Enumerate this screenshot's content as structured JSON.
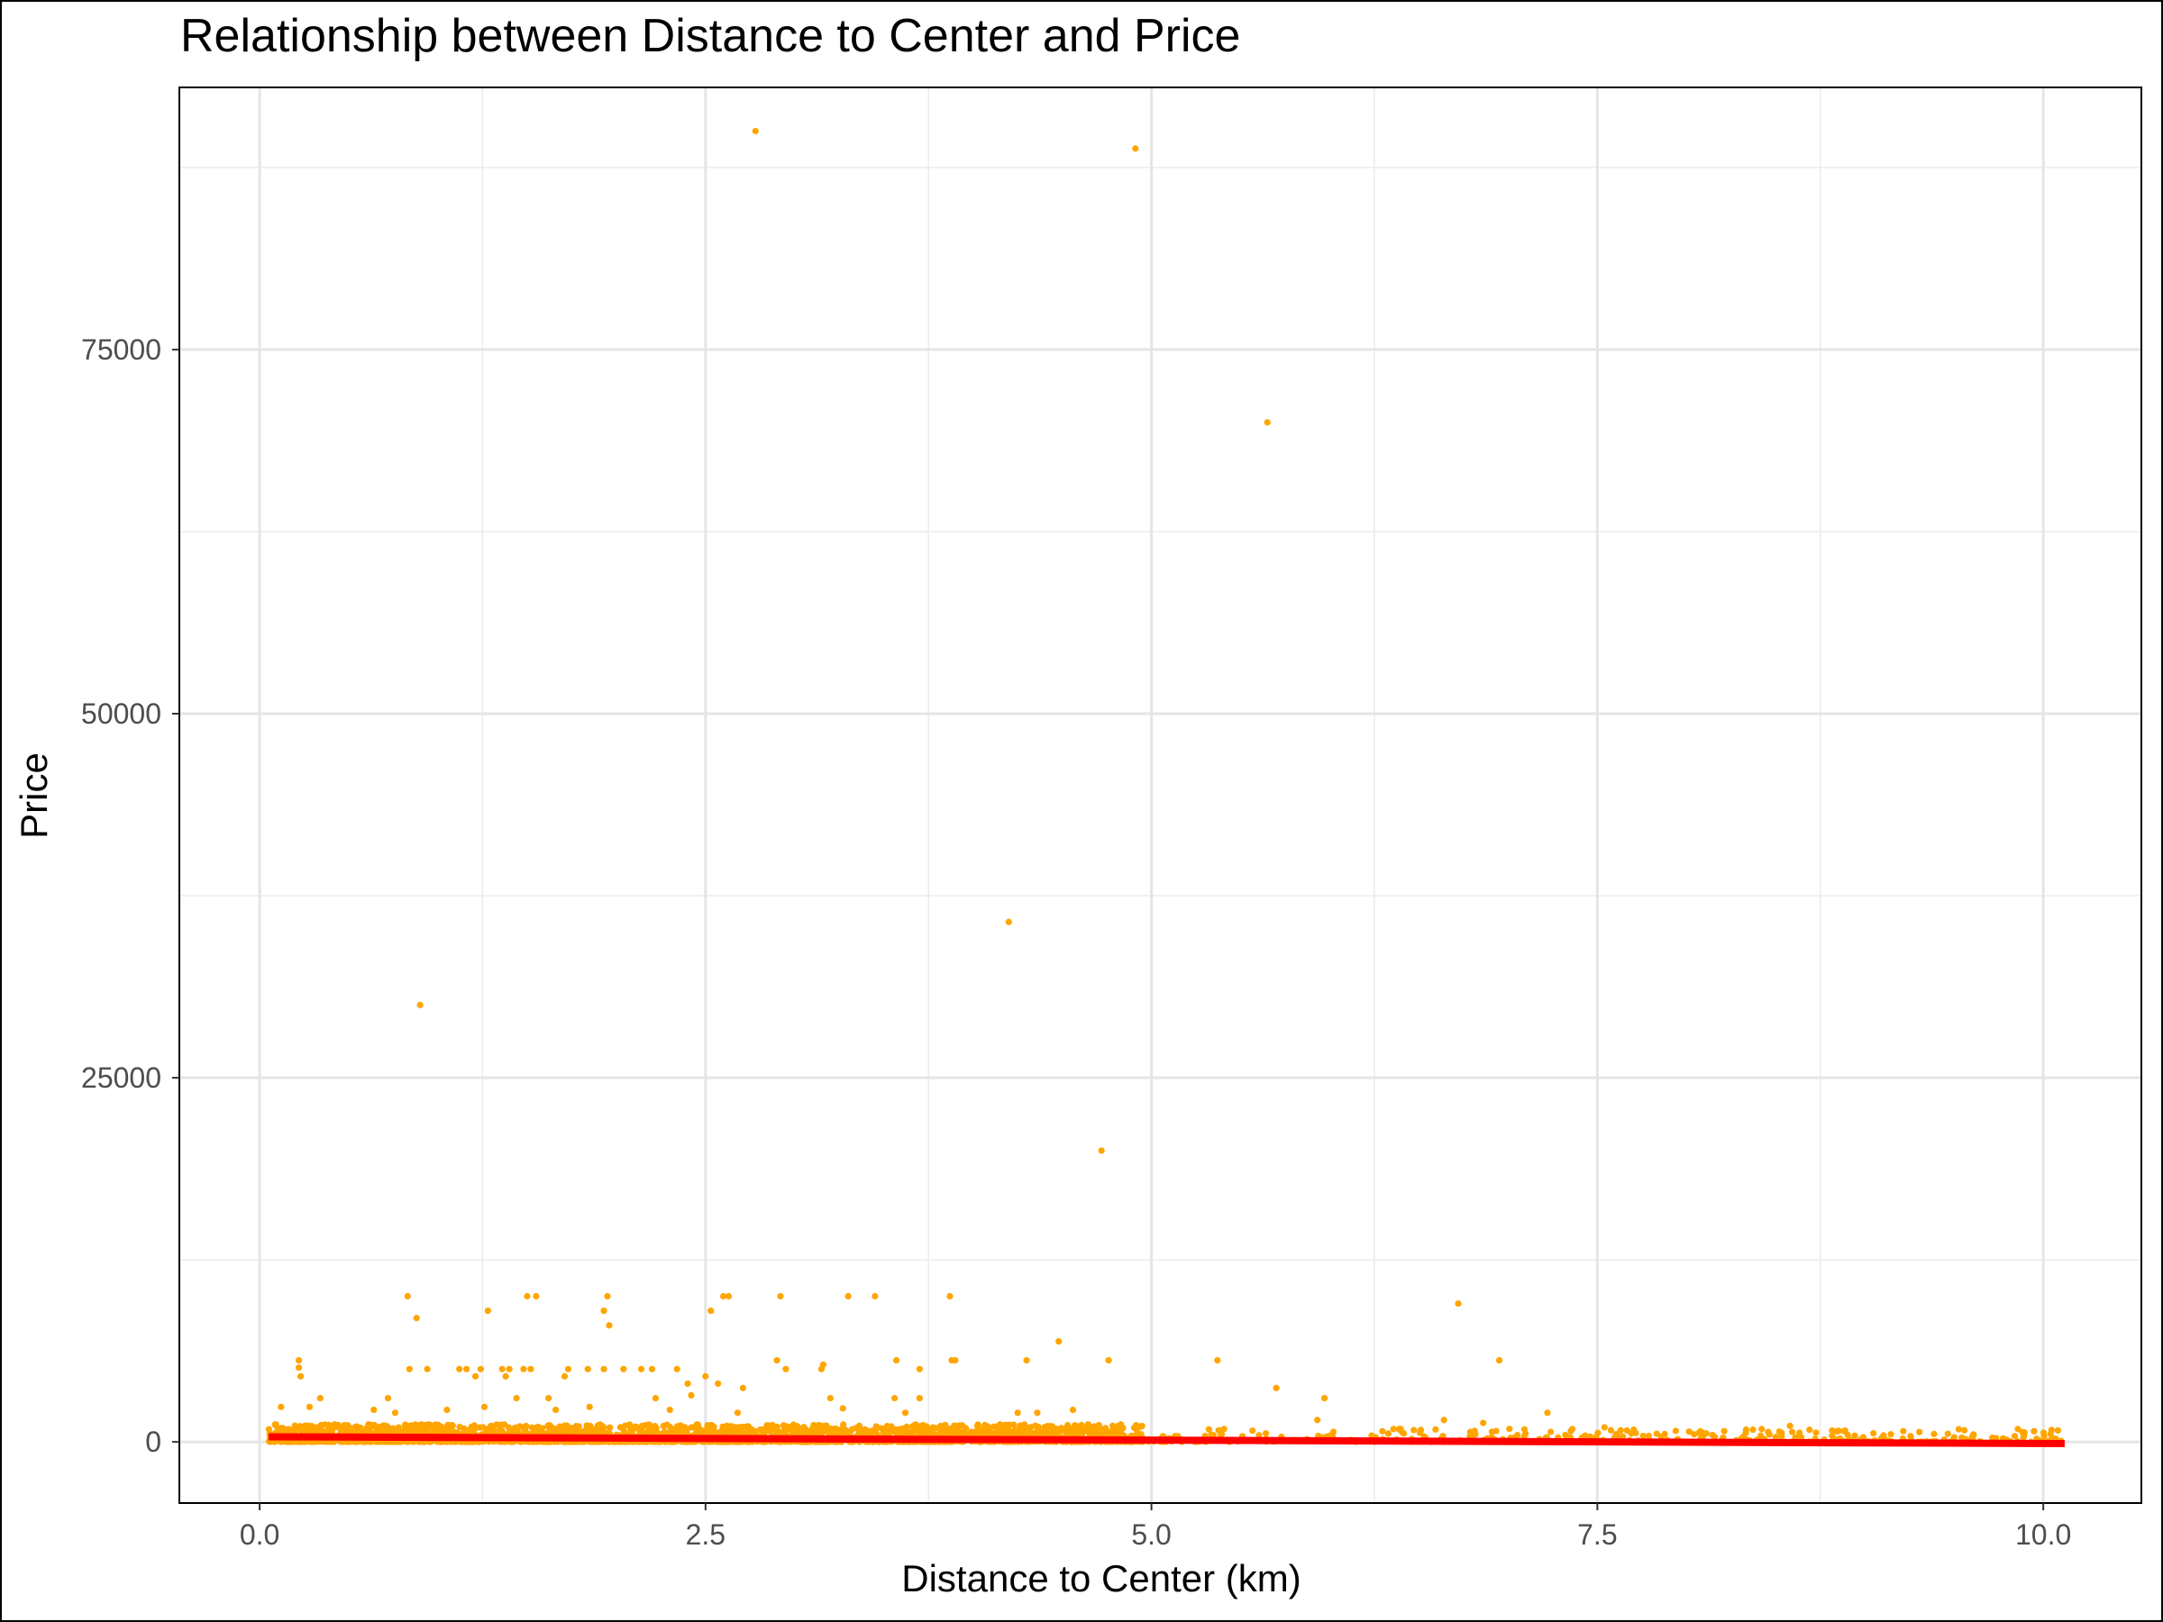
{
  "chart_data": {
    "type": "scatter",
    "title": "Relationship between Distance to Center and Price",
    "xlabel": "Distance to Center (km)",
    "ylabel": "Price",
    "xlim": [
      -0.45,
      10.55
    ],
    "ylim": [
      -4200,
      93000
    ],
    "x_ticks": [
      0.0,
      2.5,
      5.0,
      7.5,
      10.0
    ],
    "x_tick_labels": [
      "0.0",
      "2.5",
      "5.0",
      "7.5",
      "10.0"
    ],
    "y_ticks": [
      0,
      25000,
      50000,
      75000
    ],
    "y_tick_labels": [
      "0",
      "25000",
      "50000",
      "75000"
    ],
    "grid": true,
    "point_color": "#FFA500",
    "line_color": "#FF0000",
    "series": [
      {
        "kind": "points",
        "points": [
          [
            2.78,
            90000
          ],
          [
            4.91,
            88800
          ],
          [
            5.65,
            70000
          ],
          [
            4.2,
            35700
          ],
          [
            0.9,
            30000
          ],
          [
            4.72,
            20000
          ],
          [
            0.83,
            10000
          ],
          [
            1.5,
            10000
          ],
          [
            1.55,
            10000
          ],
          [
            1.95,
            10000
          ],
          [
            2.6,
            10000
          ],
          [
            2.63,
            10000
          ],
          [
            2.92,
            10000
          ],
          [
            3.3,
            10000
          ],
          [
            3.45,
            10000
          ],
          [
            3.87,
            10000
          ],
          [
            6.72,
            9500
          ],
          [
            1.28,
            9000
          ],
          [
            1.93,
            9000
          ],
          [
            2.53,
            9000
          ],
          [
            0.88,
            8500
          ],
          [
            1.96,
            8000
          ],
          [
            4.48,
            6900
          ],
          [
            0.22,
            5600
          ],
          [
            2.9,
            5600
          ],
          [
            3.57,
            5600
          ],
          [
            3.88,
            5600
          ],
          [
            3.9,
            5600
          ],
          [
            4.3,
            5600
          ],
          [
            4.76,
            5600
          ],
          [
            5.37,
            5600
          ],
          [
            6.95,
            5600
          ],
          [
            0.22,
            5100
          ],
          [
            0.84,
            5000
          ],
          [
            0.94,
            5000
          ],
          [
            1.12,
            5000
          ],
          [
            1.16,
            5000
          ],
          [
            1.24,
            5000
          ],
          [
            1.36,
            5000
          ],
          [
            1.4,
            5000
          ],
          [
            1.48,
            5000
          ],
          [
            1.52,
            5000
          ],
          [
            1.73,
            5000
          ],
          [
            1.84,
            5000
          ],
          [
            1.93,
            5000
          ],
          [
            2.04,
            5000
          ],
          [
            2.14,
            5000
          ],
          [
            2.2,
            5000
          ],
          [
            2.34,
            5000
          ],
          [
            2.95,
            5000
          ],
          [
            3.15,
            5000
          ],
          [
            3.16,
            5300
          ],
          [
            3.7,
            5000
          ],
          [
            0.23,
            4500
          ],
          [
            1.21,
            4500
          ],
          [
            1.38,
            4500
          ],
          [
            1.71,
            4500
          ],
          [
            2.4,
            4000
          ],
          [
            2.5,
            4500
          ],
          [
            2.57,
            4000
          ],
          [
            2.71,
            3700
          ],
          [
            5.7,
            3700
          ],
          [
            0.34,
            3000
          ],
          [
            0.72,
            3000
          ],
          [
            1.44,
            3000
          ],
          [
            1.62,
            3000
          ],
          [
            2.22,
            3000
          ],
          [
            2.42,
            3200
          ],
          [
            3.2,
            3000
          ],
          [
            3.56,
            3000
          ],
          [
            3.7,
            3000
          ],
          [
            5.97,
            3000
          ],
          [
            0.12,
            2400
          ],
          [
            0.28,
            2400
          ],
          [
            0.64,
            2200
          ],
          [
            0.76,
            2000
          ],
          [
            1.05,
            2200
          ],
          [
            1.26,
            2400
          ],
          [
            1.66,
            2200
          ],
          [
            1.85,
            2400
          ],
          [
            2.3,
            2200
          ],
          [
            2.68,
            2000
          ],
          [
            3.27,
            2300
          ],
          [
            3.62,
            2000
          ],
          [
            4.25,
            2000
          ],
          [
            4.36,
            2000
          ],
          [
            4.56,
            2200
          ],
          [
            5.93,
            1500
          ],
          [
            6.64,
            1500
          ],
          [
            7.22,
            2000
          ],
          [
            8.58,
            1100
          ],
          [
            7.54,
            1000
          ],
          [
            6.86,
            1300
          ]
        ]
      },
      {
        "kind": "dense_band",
        "x_range": [
          0.05,
          4.95
        ],
        "price_range": [
          0,
          1200
        ],
        "count": 2600,
        "seed": 7
      },
      {
        "kind": "sparse_band",
        "x_range": [
          4.95,
          10.1
        ],
        "price_range": [
          0,
          900
        ],
        "count": 360,
        "seed": 11
      },
      {
        "kind": "trend_line",
        "start": [
          0.05,
          350
        ],
        "end": [
          10.12,
          -120
        ]
      }
    ]
  }
}
